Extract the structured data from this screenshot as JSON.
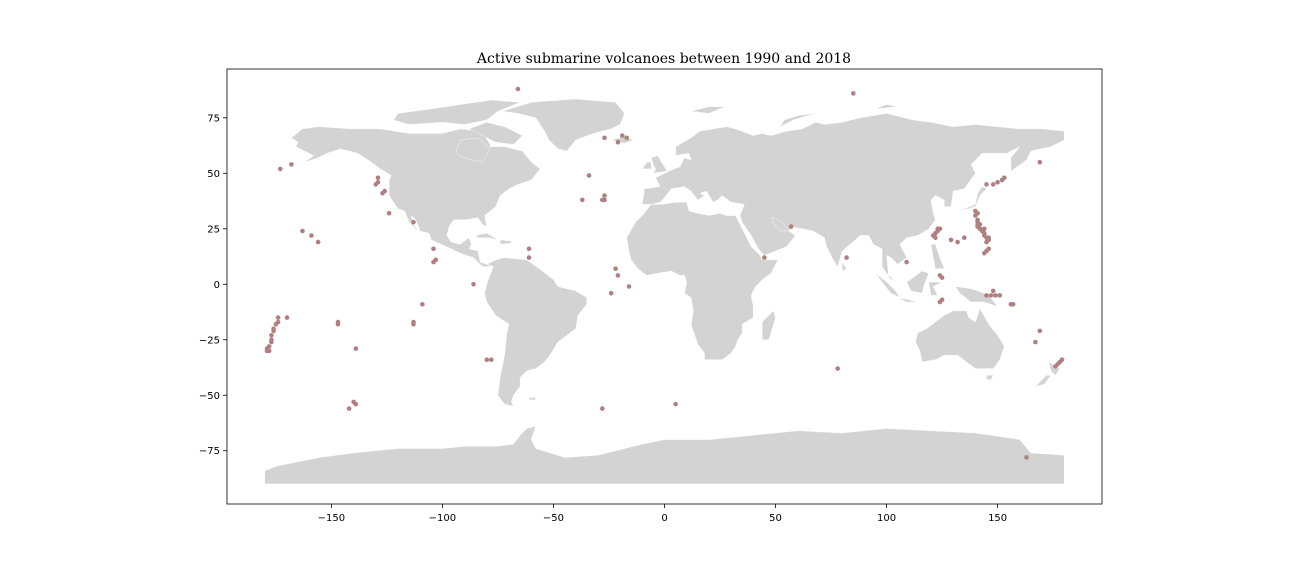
{
  "chart_data": {
    "type": "scatter",
    "title": "Active submarine volcanoes between 1990 and 2018",
    "xlabel": "",
    "ylabel": "",
    "xlim": [
      -197,
      197
    ],
    "ylim": [
      -99,
      97
    ],
    "xticks": [
      -150,
      -100,
      -50,
      0,
      50,
      100,
      150
    ],
    "xtick_labels": [
      "−150",
      "−100",
      "−50",
      "0",
      "50",
      "100",
      "150"
    ],
    "yticks": [
      75,
      50,
      25,
      0,
      -25,
      -50,
      -75
    ],
    "ytick_labels": [
      "75",
      "50",
      "25",
      "0",
      "−25",
      "−50",
      "−75"
    ],
    "grid": false,
    "basemap": "world-land",
    "colors": {
      "land": "#d3d3d3",
      "points": "#b08080",
      "background": "#ffffff"
    },
    "points": [
      [
        -66,
        88
      ],
      [
        85,
        86
      ],
      [
        -173,
        52
      ],
      [
        -168,
        54
      ],
      [
        -130,
        45
      ],
      [
        -129,
        46
      ],
      [
        -129,
        48
      ],
      [
        -127,
        41
      ],
      [
        -126,
        42
      ],
      [
        -124,
        32
      ],
      [
        -113,
        28
      ],
      [
        -163,
        24
      ],
      [
        -159,
        22
      ],
      [
        -156,
        19
      ],
      [
        -104,
        16
      ],
      [
        -104,
        10
      ],
      [
        -103,
        11
      ],
      [
        -109,
        -9
      ],
      [
        -86,
        0
      ],
      [
        -61,
        16
      ],
      [
        -61,
        12
      ],
      [
        -37,
        38
      ],
      [
        -34,
        49
      ],
      [
        -28,
        38
      ],
      [
        -27,
        38
      ],
      [
        -27,
        40
      ],
      [
        -27,
        66
      ],
      [
        -21,
        64
      ],
      [
        -19,
        67
      ],
      [
        -17,
        66
      ],
      [
        -22,
        7
      ],
      [
        -21,
        4
      ],
      [
        -16,
        -1
      ],
      [
        -24,
        -4
      ],
      [
        -170,
        -15
      ],
      [
        -174,
        -15
      ],
      [
        -174,
        -17
      ],
      [
        -175,
        -18
      ],
      [
        -176,
        -20
      ],
      [
        -176,
        -21
      ],
      [
        -177,
        -23
      ],
      [
        -177,
        -25
      ],
      [
        -177,
        -26
      ],
      [
        -178,
        -28
      ],
      [
        -179,
        -29
      ],
      [
        -179,
        -30
      ],
      [
        -178,
        -30
      ],
      [
        -147,
        -17
      ],
      [
        -147,
        -18
      ],
      [
        -113,
        -18
      ],
      [
        -113,
        -17
      ],
      [
        -139,
        -29
      ],
      [
        -78,
        -34
      ],
      [
        -80,
        -34
      ],
      [
        -142,
        -56
      ],
      [
        -139,
        -54
      ],
      [
        -140,
        -53
      ],
      [
        -28,
        -56
      ],
      [
        5,
        -54
      ],
      [
        78,
        -38
      ],
      [
        163,
        -78
      ],
      [
        45,
        12
      ],
      [
        57,
        26
      ],
      [
        169,
        55
      ],
      [
        153,
        48
      ],
      [
        152,
        47
      ],
      [
        150,
        46
      ],
      [
        148,
        45
      ],
      [
        145,
        45
      ],
      [
        140,
        33
      ],
      [
        141,
        32
      ],
      [
        140,
        31
      ],
      [
        141,
        29
      ],
      [
        141,
        28
      ],
      [
        142,
        27
      ],
      [
        141,
        26
      ],
      [
        142,
        25
      ],
      [
        143,
        24
      ],
      [
        144,
        23
      ],
      [
        144,
        22
      ],
      [
        145,
        21
      ],
      [
        146,
        20
      ],
      [
        145,
        19
      ],
      [
        146,
        21
      ],
      [
        144,
        25
      ],
      [
        145,
        15
      ],
      [
        146,
        16
      ],
      [
        144,
        14
      ],
      [
        141,
        27
      ],
      [
        123,
        25
      ],
      [
        124,
        25
      ],
      [
        121,
        22
      ],
      [
        122,
        21
      ],
      [
        122,
        23
      ],
      [
        123,
        24
      ],
      [
        132,
        19
      ],
      [
        135,
        21
      ],
      [
        129,
        20
      ],
      [
        82,
        12
      ],
      [
        109,
        10
      ],
      [
        124,
        4
      ],
      [
        125,
        3
      ],
      [
        125,
        -7
      ],
      [
        124,
        -8
      ],
      [
        145,
        -5
      ],
      [
        147,
        -5
      ],
      [
        148,
        -3
      ],
      [
        149,
        -5
      ],
      [
        151,
        -5
      ],
      [
        156,
        -9
      ],
      [
        157,
        -9
      ],
      [
        169,
        -21
      ],
      [
        167,
        -26
      ],
      [
        179,
        -34
      ],
      [
        178,
        -35
      ],
      [
        177,
        -36
      ],
      [
        176,
        -37
      ]
    ]
  }
}
